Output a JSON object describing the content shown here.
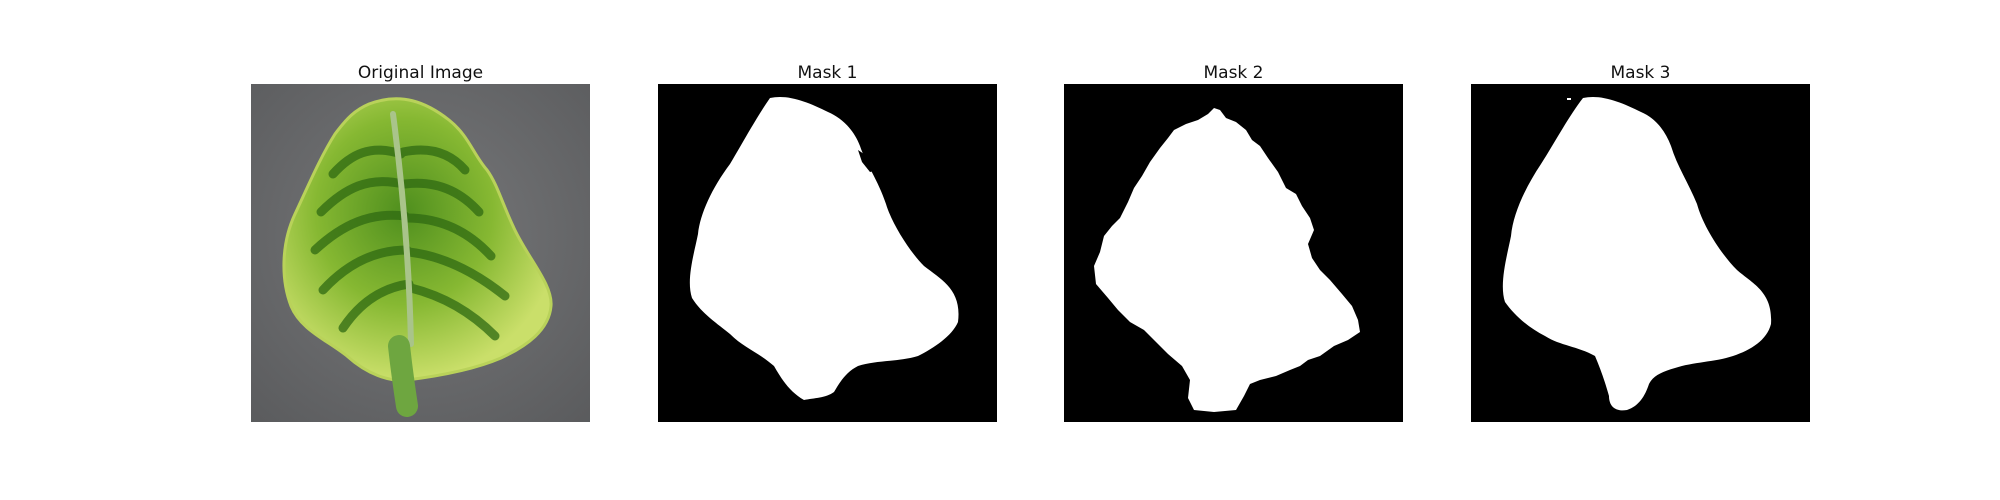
{
  "panels": [
    {
      "title": "Original Image"
    },
    {
      "title": "Mask 1"
    },
    {
      "title": "Mask 2"
    },
    {
      "title": "Mask 3"
    }
  ],
  "colors": {
    "background": "#ffffff",
    "mask_background": "#000000",
    "mask_foreground": "#ffffff",
    "photo_background": "#6c6d6e",
    "leaf_light": "#c8dc63",
    "leaf_mid": "#9dc43a",
    "leaf_dark": "#2f6a12",
    "leaf_vein": "#8ab06a"
  }
}
